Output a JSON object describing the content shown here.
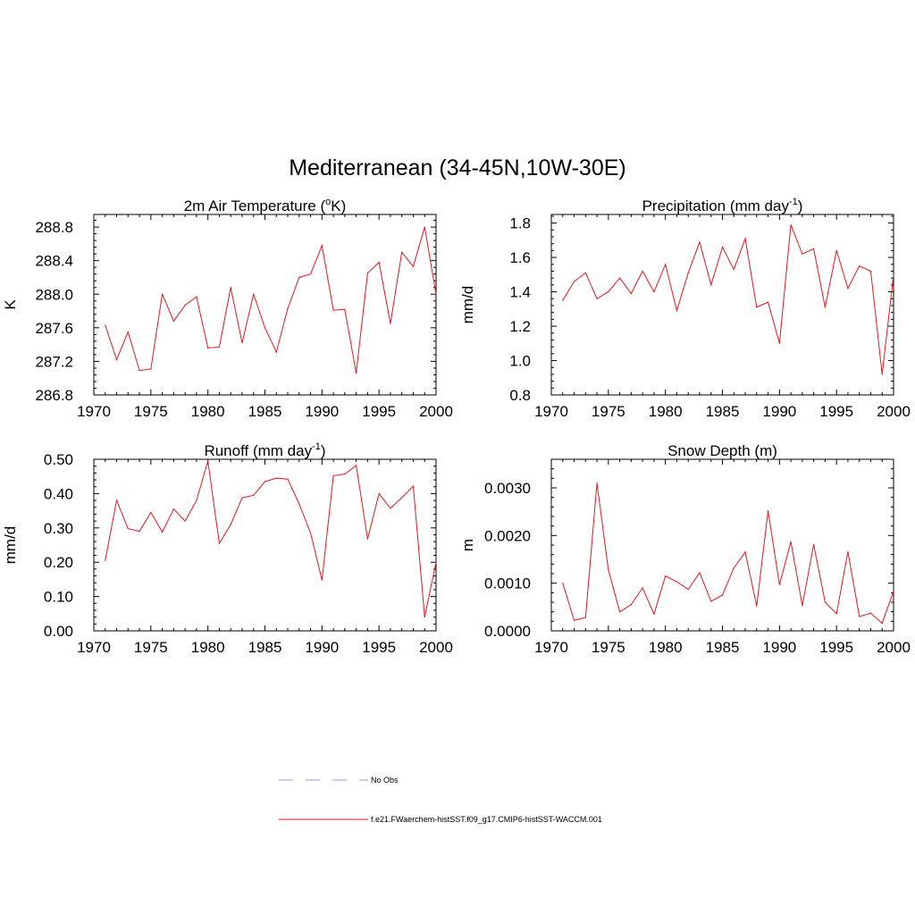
{
  "figure_title": "Mediterranean (34-45N,10W-30E)",
  "chart_data": [
    {
      "type": "line",
      "title": "2m Air Temperature (",
      "title_sup": "o",
      "title_after": "K)",
      "ylabel": "K",
      "xlim": [
        1970,
        2000
      ],
      "ylim": [
        286.8,
        288.95
      ],
      "xticks": [
        1970,
        1975,
        1980,
        1985,
        1990,
        1995,
        2000
      ],
      "yticks": [
        286.8,
        287.2,
        287.6,
        288.0,
        288.4,
        288.8
      ],
      "ytick_labels": [
        "286.8",
        "287.2",
        "287.6",
        "288.0",
        "288.4",
        "288.8"
      ],
      "series": [
        {
          "color": "#e8141c",
          "x": [
            1971,
            1972,
            1973,
            1974,
            1975,
            1976,
            1977,
            1978,
            1979,
            1980,
            1981,
            1982,
            1983,
            1984,
            1985,
            1986,
            1987,
            1988,
            1989,
            1990,
            1991,
            1992,
            1993,
            1994,
            1995,
            1996,
            1997,
            1998,
            1999,
            2000
          ],
          "values": [
            287.63,
            287.22,
            287.55,
            287.09,
            287.11,
            288.0,
            287.68,
            287.87,
            287.97,
            287.36,
            287.37,
            288.08,
            287.42,
            288.0,
            287.6,
            287.31,
            287.83,
            288.2,
            288.24,
            288.58,
            287.81,
            287.82,
            287.06,
            288.25,
            288.38,
            287.65,
            288.5,
            288.33,
            288.8,
            288.0
          ]
        }
      ]
    },
    {
      "type": "line",
      "title": "Precipitation (mm day",
      "title_sup": "-1",
      "title_after": ")",
      "ylabel": "mm/d",
      "xlim": [
        1970,
        2000
      ],
      "ylim": [
        0.8,
        1.85
      ],
      "xticks": [
        1970,
        1975,
        1980,
        1985,
        1990,
        1995,
        2000
      ],
      "yticks": [
        0.8,
        1.0,
        1.2,
        1.4,
        1.6,
        1.8
      ],
      "ytick_labels": [
        "0.8",
        "1.0",
        "1.2",
        "1.4",
        "1.6",
        "1.8"
      ],
      "series": [
        {
          "color": "#e8141c",
          "x": [
            1971,
            1972,
            1973,
            1974,
            1975,
            1976,
            1977,
            1978,
            1979,
            1980,
            1981,
            1982,
            1983,
            1984,
            1985,
            1986,
            1987,
            1988,
            1989,
            1990,
            1991,
            1992,
            1993,
            1994,
            1995,
            1996,
            1997,
            1998,
            1999,
            2000
          ],
          "values": [
            1.35,
            1.46,
            1.51,
            1.36,
            1.4,
            1.48,
            1.39,
            1.52,
            1.4,
            1.56,
            1.29,
            1.51,
            1.69,
            1.44,
            1.66,
            1.53,
            1.71,
            1.31,
            1.34,
            1.1,
            1.79,
            1.62,
            1.65,
            1.31,
            1.64,
            1.42,
            1.55,
            1.52,
            0.92,
            1.5
          ]
        }
      ]
    },
    {
      "type": "line",
      "title": "Runoff (mm day",
      "title_sup": "-1",
      "title_after": ")",
      "ylabel": "mm/d",
      "xlim": [
        1970,
        2000
      ],
      "ylim": [
        0.0,
        0.5
      ],
      "xticks": [
        1970,
        1975,
        1980,
        1985,
        1990,
        1995,
        2000
      ],
      "yticks": [
        0.0,
        0.1,
        0.2,
        0.3,
        0.4,
        0.5
      ],
      "ytick_labels": [
        "0.00",
        "0.10",
        "0.20",
        "0.30",
        "0.40",
        "0.50"
      ],
      "series": [
        {
          "color": "#e8141c",
          "x": [
            1971,
            1972,
            1973,
            1974,
            1975,
            1976,
            1977,
            1978,
            1979,
            1980,
            1981,
            1982,
            1983,
            1984,
            1985,
            1986,
            1987,
            1988,
            1989,
            1990,
            1991,
            1992,
            1993,
            1994,
            1995,
            1996,
            1997,
            1998,
            1999,
            2000
          ],
          "values": [
            0.205,
            0.38,
            0.298,
            0.29,
            0.345,
            0.288,
            0.355,
            0.32,
            0.38,
            0.495,
            0.255,
            0.31,
            0.388,
            0.395,
            0.435,
            0.445,
            0.442,
            0.37,
            0.285,
            0.148,
            0.452,
            0.457,
            0.482,
            0.268,
            0.4,
            0.357,
            0.388,
            0.422,
            0.04,
            0.2
          ]
        }
      ]
    },
    {
      "type": "line",
      "title": "Snow Depth (m)",
      "title_sup": "",
      "title_after": "",
      "ylabel": "m",
      "xlim": [
        1970,
        2000
      ],
      "ylim": [
        0.0,
        0.0036
      ],
      "xticks": [
        1970,
        1975,
        1980,
        1985,
        1990,
        1995,
        2000
      ],
      "yticks": [
        0.0,
        0.001,
        0.002,
        0.003
      ],
      "ytick_labels": [
        "0.0000",
        "0.0010",
        "0.0020",
        "0.0030"
      ],
      "series": [
        {
          "color": "#e8141c",
          "x": [
            1971,
            1972,
            1973,
            1974,
            1975,
            1976,
            1977,
            1978,
            1979,
            1980,
            1981,
            1982,
            1983,
            1984,
            1985,
            1986,
            1987,
            1988,
            1989,
            1990,
            1991,
            1992,
            1993,
            1994,
            1995,
            1996,
            1997,
            1998,
            1999,
            2000
          ],
          "values": [
            0.001,
            0.00022,
            0.00028,
            0.0031,
            0.00128,
            0.0004,
            0.00055,
            0.0009,
            0.00035,
            0.00115,
            0.00103,
            0.00087,
            0.00122,
            0.00062,
            0.00075,
            0.00132,
            0.00165,
            0.00052,
            0.00252,
            0.00097,
            0.00187,
            0.00053,
            0.00181,
            0.0006,
            0.00036,
            0.00166,
            0.0003,
            0.00037,
            0.00016,
            0.00083
          ]
        }
      ]
    }
  ],
  "legend": [
    {
      "label": "No Obs",
      "color": "#9999dd",
      "style": "dashed"
    },
    {
      "label": "f.e21.FWaerchem-histSST.f09_g17.CMIP6-histSST-WACCM.001",
      "color": "#e8141c",
      "style": "solid"
    }
  ]
}
